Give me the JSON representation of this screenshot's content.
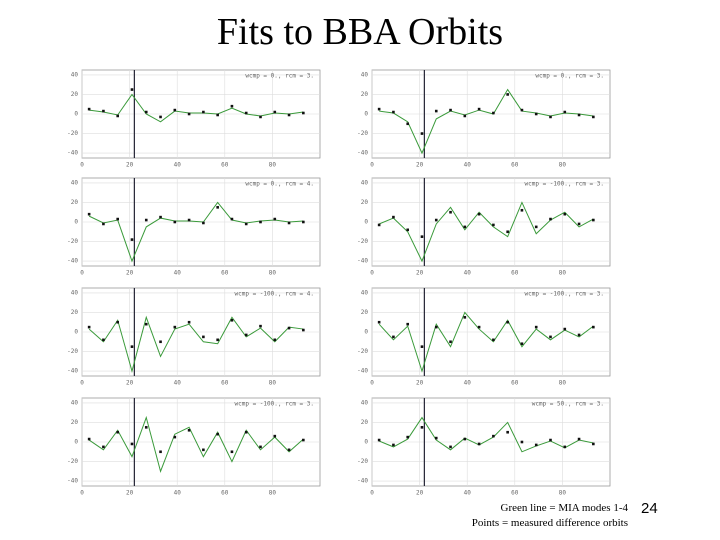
{
  "title": "Fits to BBA Orbits",
  "footer": {
    "line1": "Green line = MIA modes 1-4",
    "line2": "Points = measured difference orbits",
    "page_number": "24"
  },
  "chart_data": [
    {
      "type": "line",
      "label": "wcmp = 0., rcm = 3.",
      "x": [
        3,
        9,
        15,
        21,
        27,
        33,
        39,
        45,
        51,
        57,
        63,
        69,
        75,
        81,
        87,
        93
      ],
      "xlim": [
        0,
        100
      ],
      "xticks": [
        0,
        20,
        40,
        60,
        80
      ],
      "ylim": [
        -45,
        45
      ],
      "yticks": [
        -40,
        -20,
        0,
        20,
        40
      ],
      "grid": true,
      "vlines": [
        22
      ],
      "fit": {
        "color": "#3a9a3a",
        "values": [
          4,
          2,
          -1,
          20,
          0,
          -8,
          3,
          1,
          1,
          0,
          6,
          0,
          -2,
          1,
          0,
          2
        ]
      },
      "points": {
        "color": "#111111",
        "values": [
          5,
          3,
          -2,
          25,
          2,
          -3,
          4,
          0,
          2,
          -1,
          8,
          1,
          -3,
          2,
          -1,
          1
        ]
      }
    },
    {
      "type": "line",
      "label": "wcmp = 0., rcm = 3.",
      "x": [
        3,
        9,
        15,
        21,
        27,
        33,
        39,
        45,
        51,
        57,
        63,
        69,
        75,
        81,
        87,
        93
      ],
      "xlim": [
        0,
        100
      ],
      "xticks": [
        0,
        20,
        40,
        60,
        80
      ],
      "ylim": [
        -45,
        45
      ],
      "yticks": [
        -40,
        -20,
        0,
        20,
        40
      ],
      "grid": true,
      "vlines": [
        22
      ],
      "fit": {
        "color": "#3a9a3a",
        "values": [
          3,
          1,
          -8,
          -40,
          -5,
          3,
          -1,
          4,
          0,
          25,
          3,
          1,
          -2,
          1,
          0,
          -2
        ]
      },
      "points": {
        "color": "#111111",
        "values": [
          5,
          2,
          -10,
          -20,
          3,
          4,
          -2,
          5,
          1,
          20,
          4,
          0,
          -3,
          2,
          -1,
          -3
        ]
      }
    },
    {
      "type": "line",
      "label": "wcmp = 0., rcm = 4.",
      "x": [
        3,
        9,
        15,
        21,
        27,
        33,
        39,
        45,
        51,
        57,
        63,
        69,
        75,
        81,
        87,
        93
      ],
      "xlim": [
        0,
        100
      ],
      "xticks": [
        0,
        20,
        40,
        60,
        80
      ],
      "ylim": [
        -45,
        45
      ],
      "yticks": [
        -40,
        -20,
        0,
        20,
        40
      ],
      "grid": true,
      "vlines": [
        22
      ],
      "fit": {
        "color": "#3a9a3a",
        "values": [
          6,
          -1,
          2,
          -40,
          -5,
          4,
          1,
          1,
          0,
          20,
          2,
          -1,
          1,
          2,
          0,
          1
        ]
      },
      "points": {
        "color": "#111111",
        "values": [
          8,
          -2,
          3,
          -18,
          2,
          5,
          0,
          2,
          -1,
          15,
          3,
          -2,
          0,
          3,
          -1,
          0
        ]
      }
    },
    {
      "type": "line",
      "label": "wcmp = -100., rcm = 3.",
      "x": [
        3,
        9,
        15,
        21,
        27,
        33,
        39,
        45,
        51,
        57,
        63,
        69,
        75,
        81,
        87,
        93
      ],
      "xlim": [
        0,
        100
      ],
      "xticks": [
        0,
        20,
        40,
        60,
        80
      ],
      "ylim": [
        -45,
        45
      ],
      "yticks": [
        -40,
        -20,
        0,
        20,
        40
      ],
      "grid": true,
      "vlines": [
        22
      ],
      "fit": {
        "color": "#3a9a3a",
        "values": [
          -2,
          4,
          -10,
          -40,
          -2,
          15,
          -8,
          10,
          -5,
          -15,
          20,
          -12,
          2,
          10,
          -5,
          3
        ]
      },
      "points": {
        "color": "#111111",
        "values": [
          -3,
          5,
          -8,
          -15,
          2,
          10,
          -5,
          8,
          -3,
          -10,
          12,
          -5,
          3,
          8,
          -2,
          2
        ]
      }
    },
    {
      "type": "line",
      "label": "wcmp = -100., rcm = 4.",
      "x": [
        3,
        9,
        15,
        21,
        27,
        33,
        39,
        45,
        51,
        57,
        63,
        69,
        75,
        81,
        87,
        93
      ],
      "xlim": [
        0,
        100
      ],
      "xticks": [
        0,
        20,
        40,
        60,
        80
      ],
      "ylim": [
        -45,
        45
      ],
      "yticks": [
        -40,
        -20,
        0,
        20,
        40
      ],
      "grid": true,
      "vlines": [
        22
      ],
      "fit": {
        "color": "#3a9a3a",
        "values": [
          3,
          -10,
          12,
          -40,
          15,
          -25,
          3,
          8,
          -10,
          -12,
          15,
          -5,
          4,
          -10,
          5,
          3
        ]
      },
      "points": {
        "color": "#111111",
        "values": [
          5,
          -8,
          10,
          -15,
          8,
          -10,
          5,
          10,
          -5,
          -8,
          12,
          -3,
          6,
          -8,
          4,
          2
        ]
      }
    },
    {
      "type": "line",
      "label": "wcmp = -100., rcm = 3.",
      "x": [
        3,
        9,
        15,
        21,
        27,
        33,
        39,
        45,
        51,
        57,
        63,
        69,
        75,
        81,
        87,
        93
      ],
      "xlim": [
        0,
        100
      ],
      "xticks": [
        0,
        20,
        40,
        60,
        80
      ],
      "ylim": [
        -45,
        45
      ],
      "yticks": [
        -40,
        -20,
        0,
        20,
        40
      ],
      "grid": true,
      "vlines": [
        22
      ],
      "fit": {
        "color": "#3a9a3a",
        "values": [
          8,
          -8,
          6,
          -40,
          8,
          -15,
          20,
          3,
          -10,
          12,
          -15,
          3,
          -8,
          2,
          -5,
          6
        ]
      },
      "points": {
        "color": "#111111",
        "values": [
          10,
          -5,
          8,
          -15,
          5,
          -10,
          15,
          5,
          -8,
          10,
          -12,
          5,
          -5,
          3,
          -3,
          5
        ]
      }
    },
    {
      "type": "line",
      "label": "wcmp = -100., rcm = 3.",
      "x": [
        3,
        9,
        15,
        21,
        27,
        33,
        39,
        45,
        51,
        57,
        63,
        69,
        75,
        81,
        87,
        93
      ],
      "xlim": [
        0,
        100
      ],
      "xticks": [
        0,
        20,
        40,
        60,
        80
      ],
      "ylim": [
        -45,
        45
      ],
      "yticks": [
        -40,
        -20,
        0,
        20,
        40
      ],
      "grid": true,
      "vlines": [
        22
      ],
      "fit": {
        "color": "#3a9a3a",
        "values": [
          2,
          -8,
          12,
          -15,
          25,
          -30,
          8,
          15,
          -15,
          10,
          -20,
          12,
          -8,
          5,
          -10,
          3
        ]
      },
      "points": {
        "color": "#111111",
        "values": [
          3,
          -5,
          10,
          -2,
          15,
          -10,
          5,
          12,
          -8,
          8,
          -10,
          10,
          -5,
          6,
          -8,
          2
        ]
      }
    },
    {
      "type": "line",
      "label": "wcmp = 50., rcm = 3.",
      "x": [
        3,
        9,
        15,
        21,
        27,
        33,
        39,
        45,
        51,
        57,
        63,
        69,
        75,
        81,
        87,
        93
      ],
      "xlim": [
        0,
        100
      ],
      "xticks": [
        0,
        20,
        40,
        60,
        80
      ],
      "ylim": [
        -45,
        45
      ],
      "yticks": [
        -40,
        -20,
        0,
        20,
        40
      ],
      "grid": true,
      "vlines": [
        22
      ],
      "fit": {
        "color": "#3a9a3a",
        "values": [
          1,
          -5,
          3,
          25,
          2,
          -8,
          4,
          -3,
          5,
          20,
          -10,
          -4,
          1,
          -6,
          2,
          -1
        ]
      },
      "points": {
        "color": "#111111",
        "values": [
          2,
          -3,
          5,
          15,
          4,
          -5,
          3,
          -2,
          6,
          10,
          0,
          -3,
          2,
          -5,
          3,
          -2
        ]
      }
    }
  ]
}
